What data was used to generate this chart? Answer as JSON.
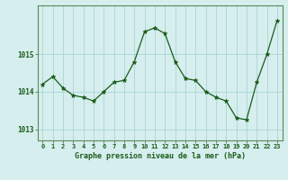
{
  "x": [
    0,
    1,
    2,
    3,
    4,
    5,
    6,
    7,
    8,
    9,
    10,
    11,
    12,
    13,
    14,
    15,
    16,
    17,
    18,
    19,
    20,
    21,
    22,
    23
  ],
  "y": [
    1014.2,
    1014.4,
    1014.1,
    1013.9,
    1013.85,
    1013.75,
    1014.0,
    1014.25,
    1014.3,
    1014.8,
    1015.6,
    1015.7,
    1015.55,
    1014.8,
    1014.35,
    1014.3,
    1014.0,
    1013.85,
    1013.75,
    1013.3,
    1013.25,
    1014.25,
    1015.0,
    1015.9
  ],
  "line_color": "#1a5c1a",
  "marker": "*",
  "marker_size": 3.5,
  "bg_color": "#d6eeee",
  "grid_color": "#aad4d4",
  "tick_color": "#1a5c1a",
  "label_color": "#1a5c1a",
  "xlabel": "Graphe pression niveau de la mer (hPa)",
  "yticks": [
    1013,
    1014,
    1015
  ],
  "ylim": [
    1012.7,
    1016.3
  ],
  "xlim": [
    -0.5,
    23.5
  ]
}
